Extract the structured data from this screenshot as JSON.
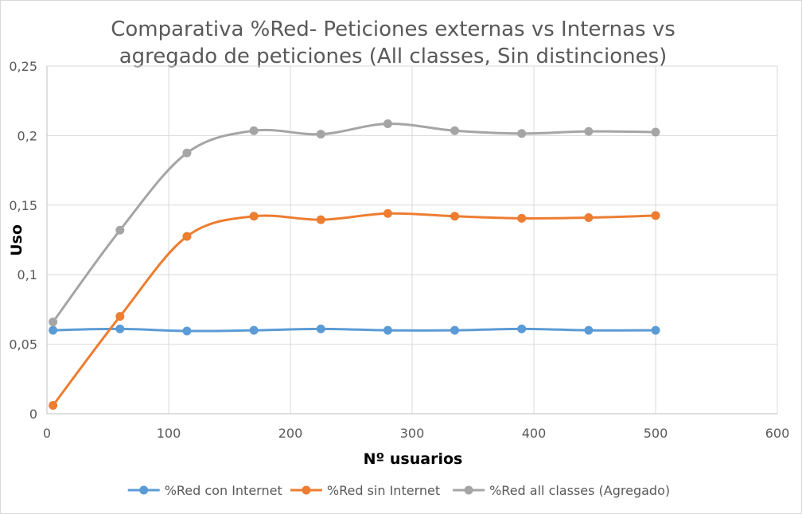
{
  "chart_data": {
    "type": "line",
    "title_lines": [
      "Comparativa %Red- Peticiones externas vs Internas vs",
      "agregado de peticiones (All classes, Sin distinciones)"
    ],
    "xlabel": "Nº usuarios",
    "ylabel": "Uso",
    "xlim": [
      0,
      600
    ],
    "ylim": [
      0,
      0.25
    ],
    "x_ticks": [
      0,
      100,
      200,
      300,
      400,
      500,
      600
    ],
    "x_tick_labels": [
      "0",
      "100",
      "200",
      "300",
      "400",
      "500",
      "600"
    ],
    "y_ticks": [
      0,
      0.05,
      0.1,
      0.15,
      0.2,
      0.25
    ],
    "y_tick_labels": [
      "0",
      "0,05",
      "0,1",
      "0,15",
      "0,2",
      "0,25"
    ],
    "grid": true,
    "legend_position": "bottom",
    "smooth": true,
    "x": [
      5,
      60,
      115,
      170,
      225,
      280,
      335,
      390,
      445,
      500
    ],
    "series": [
      {
        "name": "%Red con Internet",
        "color": "#5b9bd5",
        "values": [
          0.06,
          0.061,
          0.0595,
          0.06,
          0.061,
          0.06,
          0.06,
          0.061,
          0.06,
          0.06
        ]
      },
      {
        "name": "%Red sin Internet",
        "color": "#ed7d31",
        "values": [
          0.006,
          0.07,
          0.1275,
          0.142,
          0.1395,
          0.144,
          0.142,
          0.1405,
          0.141,
          0.1425
        ]
      },
      {
        "name": "%Red all classes (Agregado)",
        "color": "#a5a5a5",
        "values": [
          0.066,
          0.132,
          0.1875,
          0.2035,
          0.201,
          0.2085,
          0.2035,
          0.2015,
          0.203,
          0.2025
        ]
      }
    ]
  }
}
